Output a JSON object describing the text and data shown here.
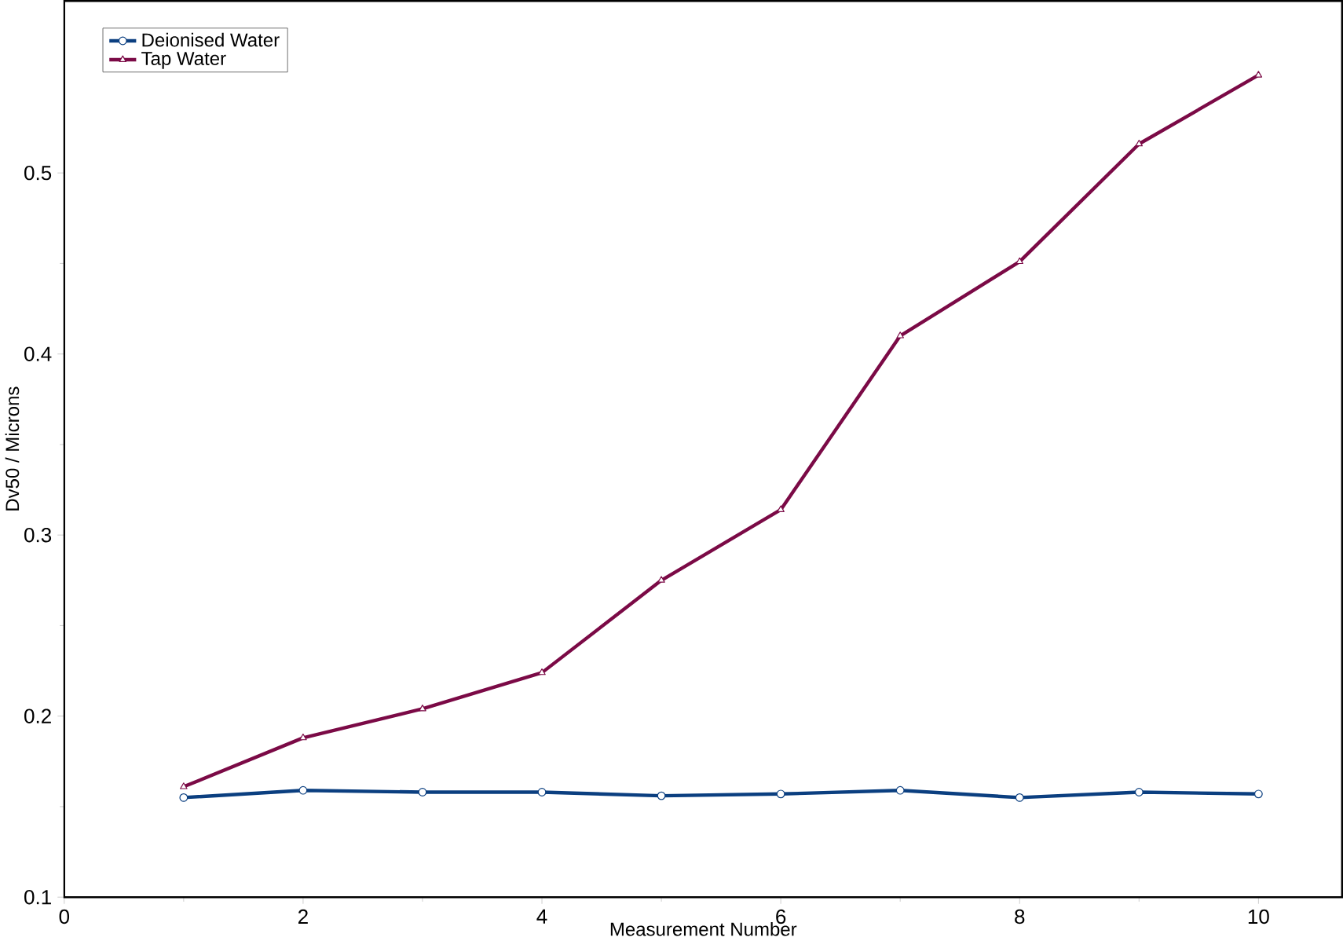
{
  "chart_data": {
    "type": "line",
    "xlabel": "Measurement Number",
    "ylabel": "Dv50 / Microns",
    "x": [
      1,
      2,
      3,
      4,
      5,
      6,
      7,
      8,
      9,
      10
    ],
    "series": [
      {
        "name": "Deionised Water",
        "color": "#0b3f80",
        "marker": "circle",
        "values": [
          0.155,
          0.159,
          0.158,
          0.158,
          0.156,
          0.157,
          0.159,
          0.155,
          0.158,
          0.157
        ]
      },
      {
        "name": "Tap Water",
        "color": "#7b0a46",
        "marker": "triangle",
        "values": [
          0.161,
          0.188,
          0.204,
          0.224,
          0.275,
          0.314,
          0.41,
          0.451,
          0.516,
          0.554
        ]
      }
    ],
    "xlim": [
      0,
      10.7
    ],
    "ylim": [
      0.1,
      0.595
    ],
    "xticks": [
      0,
      2,
      4,
      6,
      8,
      10
    ],
    "yticks": [
      0.1,
      0.2,
      0.3,
      0.4,
      0.5
    ],
    "grid": false,
    "legend": "top left",
    "line_style": "solid"
  }
}
